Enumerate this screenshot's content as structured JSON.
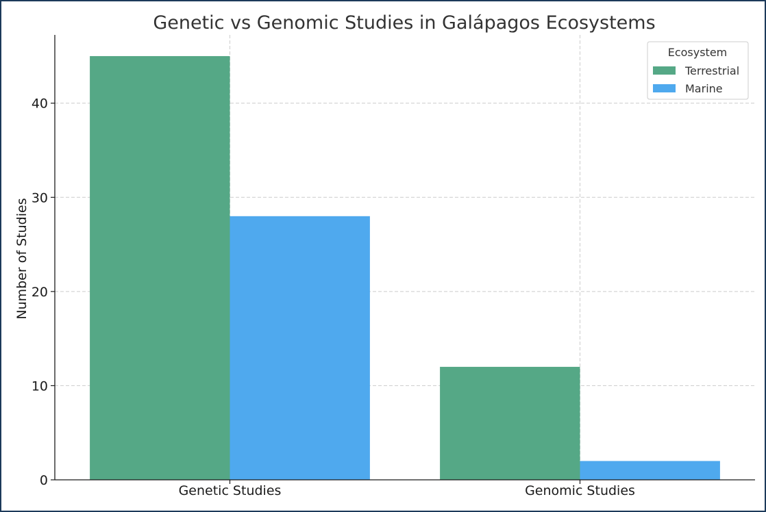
{
  "chart_data": {
    "type": "bar",
    "title": "Genetic vs Genomic Studies in Galápagos Ecosystems",
    "xlabel": "",
    "ylabel": "Number of Studies",
    "categories": [
      "Genetic Studies",
      "Genomic Studies"
    ],
    "series": [
      {
        "name": "Terrestrial",
        "values": [
          45,
          12
        ],
        "color": "#55a886"
      },
      {
        "name": "Marine",
        "values": [
          28,
          2
        ],
        "color": "#4fa9ee"
      }
    ],
    "ylim": [
      0,
      47.25
    ],
    "yticks": [
      0,
      10,
      20,
      30,
      40
    ],
    "grid": true,
    "legend": {
      "title": "Ecosystem",
      "placement": "top-right"
    }
  }
}
